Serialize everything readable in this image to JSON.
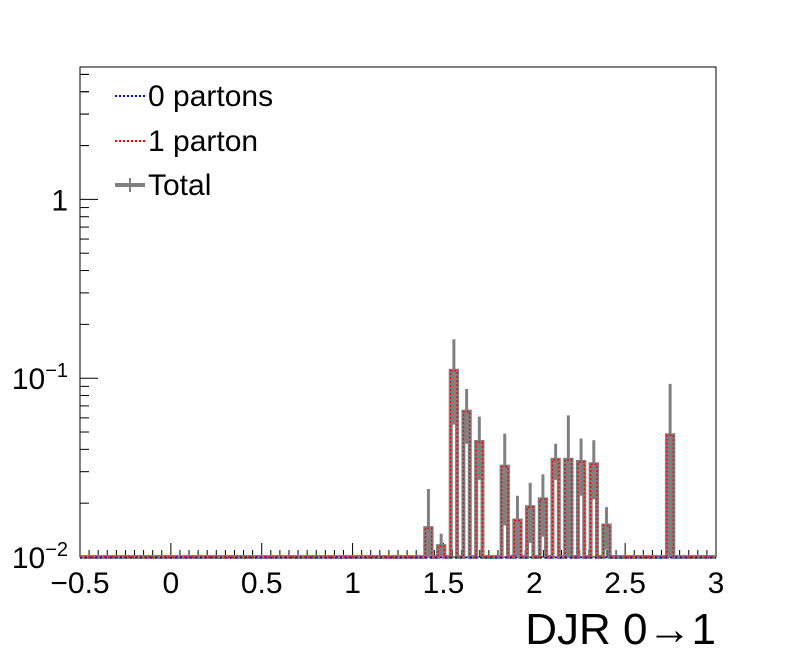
{
  "chart_data": {
    "type": "histogram",
    "xlabel": "DJR 0→1",
    "ylabel": "",
    "title": "",
    "xlim": [
      -0.5,
      3.0
    ],
    "ylim": [
      0.01,
      5.5
    ],
    "yscale": "log",
    "grid": false,
    "legend_position": "top-left",
    "x_ticks": [
      "−0.5",
      "0",
      "0.5",
      "1",
      "1.5",
      "2",
      "2.5",
      "3"
    ],
    "x_tick_values": [
      -0.5,
      0,
      0.5,
      1,
      1.5,
      2,
      2.5,
      3
    ],
    "y_ticks": [
      {
        "value": 0.01,
        "base": "10",
        "exp": "−2"
      },
      {
        "value": 0.1,
        "base": "10",
        "exp": "−1"
      },
      {
        "value": 1,
        "base": "1",
        "exp": ""
      }
    ],
    "bin_width": 0.035,
    "baseline": 0.01,
    "series": [
      {
        "name": "0 partons",
        "color": "#0000ff",
        "style": "dotted",
        "bins": []
      },
      {
        "name": "1 parton",
        "color": "#ff0000",
        "style": "dotted",
        "bins": [
          {
            "x0": 1.4,
            "value": 0.0145,
            "err": 0.0095
          },
          {
            "x0": 1.47,
            "value": 0.0115,
            "err": 0.002
          },
          {
            "x0": 1.54,
            "value": 0.11,
            "err": 0.055
          },
          {
            "x0": 1.61,
            "value": 0.065,
            "err": 0.022
          },
          {
            "x0": 1.68,
            "value": 0.044,
            "err": 0.017
          },
          {
            "x0": 1.82,
            "value": 0.032,
            "err": 0.017
          },
          {
            "x0": 1.89,
            "value": 0.016,
            "err": 0.006
          },
          {
            "x0": 1.96,
            "value": 0.019,
            "err": 0.007
          },
          {
            "x0": 2.03,
            "value": 0.021,
            "err": 0.008
          },
          {
            "x0": 2.1,
            "value": 0.035,
            "err": 0.008
          },
          {
            "x0": 2.17,
            "value": 0.035,
            "err": 0.027
          },
          {
            "x0": 2.24,
            "value": 0.034,
            "err": 0.012
          },
          {
            "x0": 2.31,
            "value": 0.033,
            "err": 0.012
          },
          {
            "x0": 2.38,
            "value": 0.015,
            "err": 0.004
          },
          {
            "x0": 2.73,
            "value": 0.048,
            "err": 0.045
          }
        ]
      },
      {
        "name": "Total",
        "color": "#808080",
        "style": "solid",
        "bins": "same as 1 parton"
      }
    ]
  }
}
